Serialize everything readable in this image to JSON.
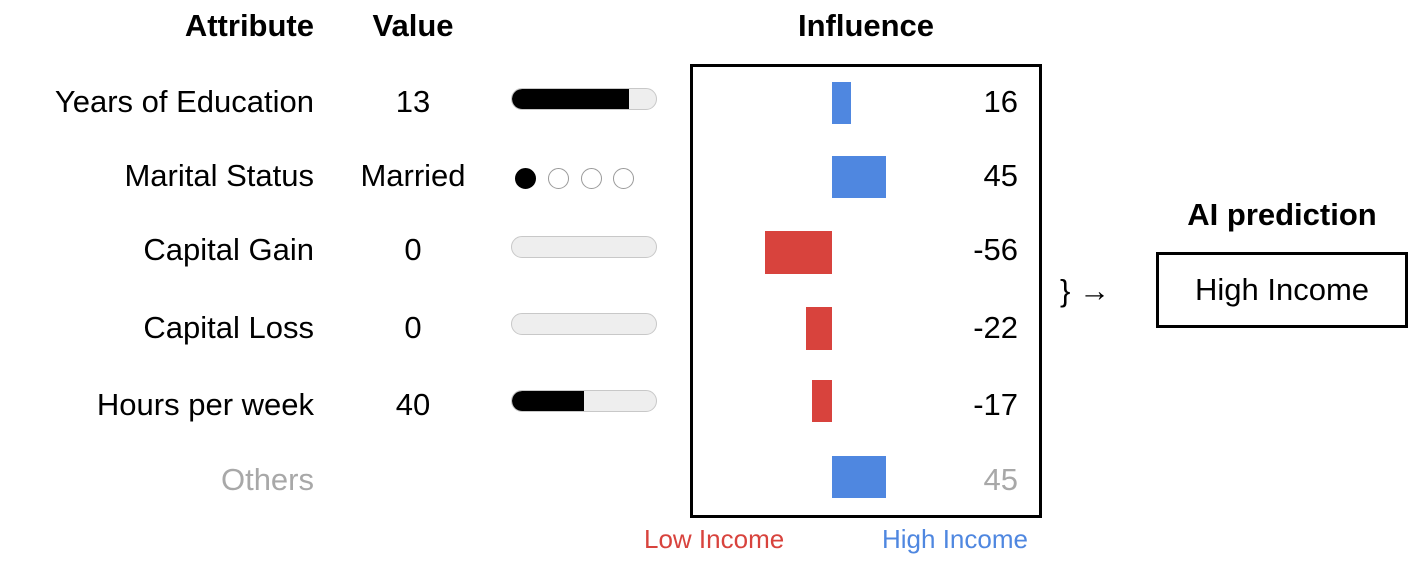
{
  "headers": {
    "attribute": "Attribute",
    "value": "Value",
    "influence": "Influence"
  },
  "rows": [
    {
      "attribute": "Years of Education",
      "value": "13",
      "indicator": "bar",
      "fill": 0.81,
      "influence": 16,
      "influence_label": "16"
    },
    {
      "attribute": "Marital Status",
      "value": "Married",
      "indicator": "dots",
      "dots": [
        true,
        false,
        false,
        false
      ],
      "influence": 45,
      "influence_label": "45"
    },
    {
      "attribute": "Capital Gain",
      "value": "0",
      "indicator": "bar",
      "fill": 0,
      "influence": -56,
      "influence_label": "-56"
    },
    {
      "attribute": "Capital Loss",
      "value": "0",
      "indicator": "bar",
      "fill": 0,
      "influence": -22,
      "influence_label": "-22"
    },
    {
      "attribute": "Hours per week",
      "value": "40",
      "indicator": "bar",
      "fill": 0.5,
      "influence": -17,
      "influence_label": "-17"
    },
    {
      "attribute": "Others",
      "value": "",
      "indicator": "none",
      "influence": 45,
      "influence_label": "45",
      "muted": true
    }
  ],
  "axis": {
    "low_label": "Low Income",
    "high_label": "High Income"
  },
  "arrow": "} →",
  "prediction": {
    "title": "AI prediction",
    "value": "High Income"
  },
  "colors": {
    "positive": "#4f87e0",
    "negative": "#d8433d",
    "low_label": "#d8433d",
    "high_label": "#4f87e0",
    "muted": "#a8a8a8"
  },
  "chart_data": {
    "type": "bar",
    "orientation": "horizontal",
    "title": "Influence",
    "categories": [
      "Years of Education",
      "Marital Status",
      "Capital Gain",
      "Capital Loss",
      "Hours per week",
      "Others"
    ],
    "values": [
      16,
      45,
      -56,
      -22,
      -17,
      45
    ],
    "xlabel_negative": "Low Income",
    "xlabel_positive": "High Income",
    "grid": false
  }
}
